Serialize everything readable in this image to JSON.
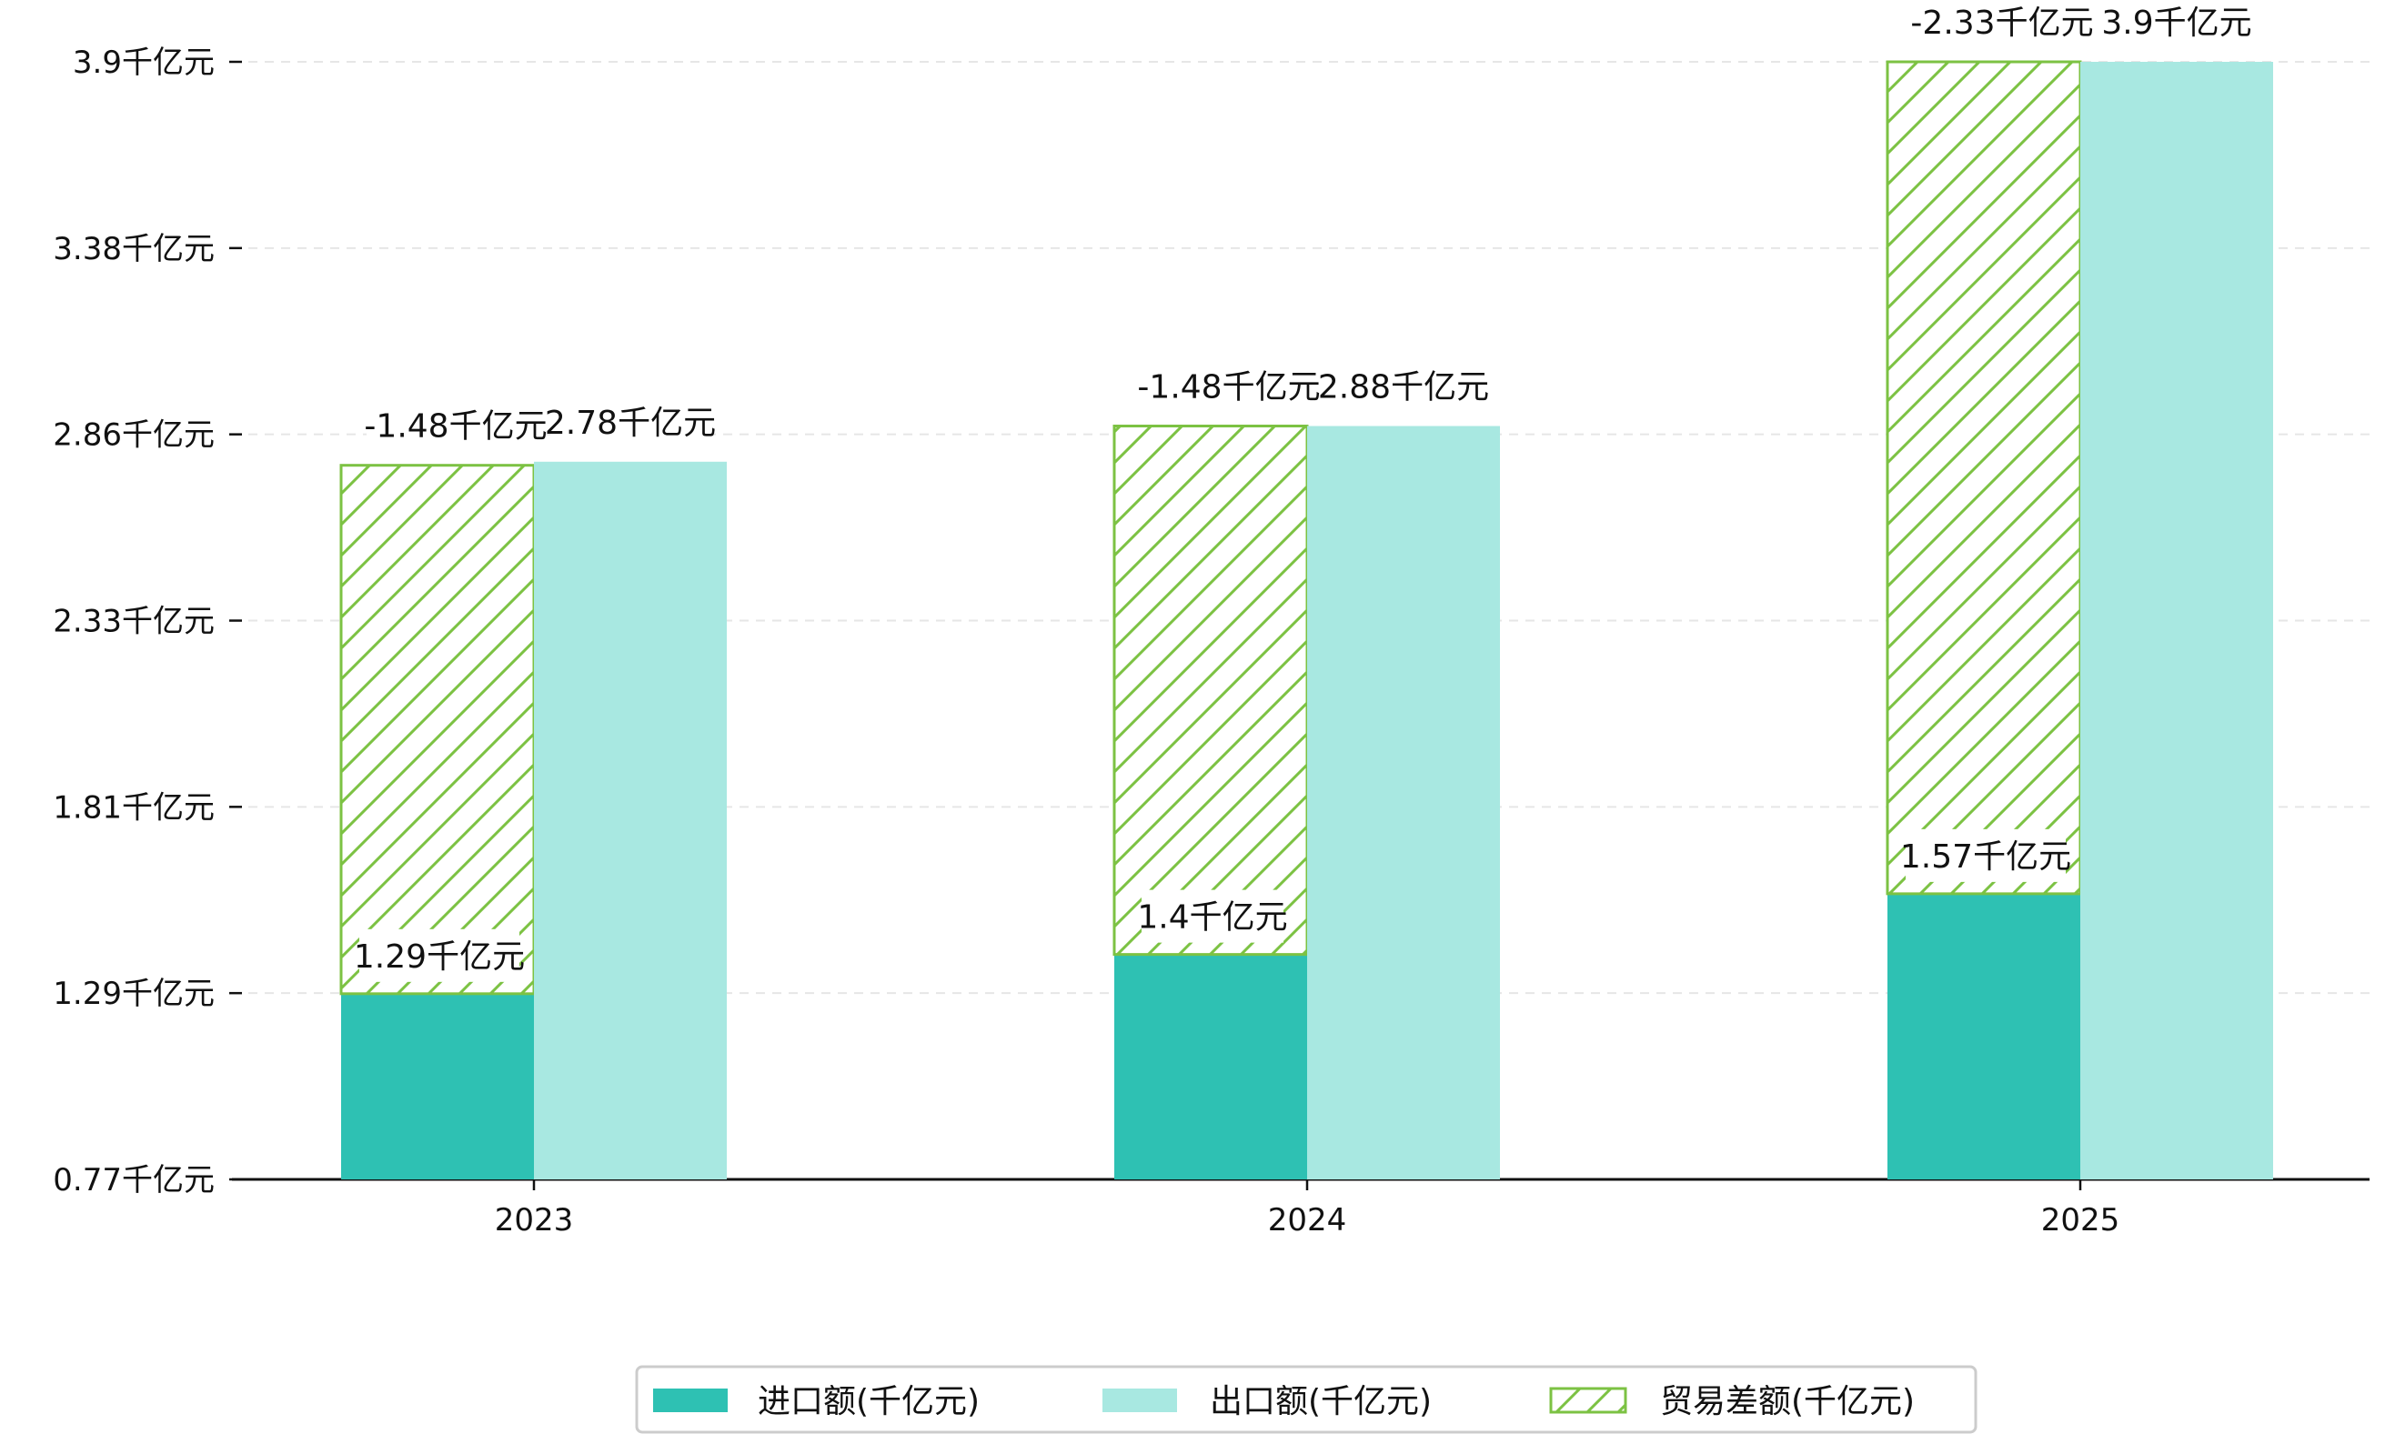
{
  "chart_data": {
    "type": "bar",
    "categories": [
      "2023",
      "2024",
      "2025"
    ],
    "unit": "千亿元",
    "y_ticks": [
      "0.77千亿元",
      "1.29千亿元",
      "1.81千亿元",
      "2.33千亿元",
      "2.86千亿元",
      "3.38千亿元",
      "3.9千亿元"
    ],
    "ylim": [
      0.77,
      3.9
    ],
    "grid": true,
    "legend_position": "bottom-center",
    "series": [
      {
        "name": "进口额(千亿元)",
        "kind": "bar",
        "color": "#2EC1B3",
        "values": [
          1.29,
          1.4,
          1.57
        ],
        "labels": [
          "1.29千亿元",
          "1.4千亿元",
          "1.57千亿元"
        ]
      },
      {
        "name": "出口额(千亿元)",
        "kind": "bar",
        "color": "#A8E8E1",
        "values": [
          2.78,
          2.88,
          3.9
        ],
        "labels": [
          "2.78千亿元",
          "2.88千亿元",
          "3.9千亿元"
        ]
      },
      {
        "name": "贸易差额(千亿元)",
        "kind": "stacked-hatch",
        "color": "#7CC243",
        "values": [
          -1.48,
          -1.48,
          -2.33
        ],
        "labels": [
          "-1.48千亿元",
          "-1.48千亿元",
          "-2.33千亿元"
        ]
      }
    ]
  }
}
